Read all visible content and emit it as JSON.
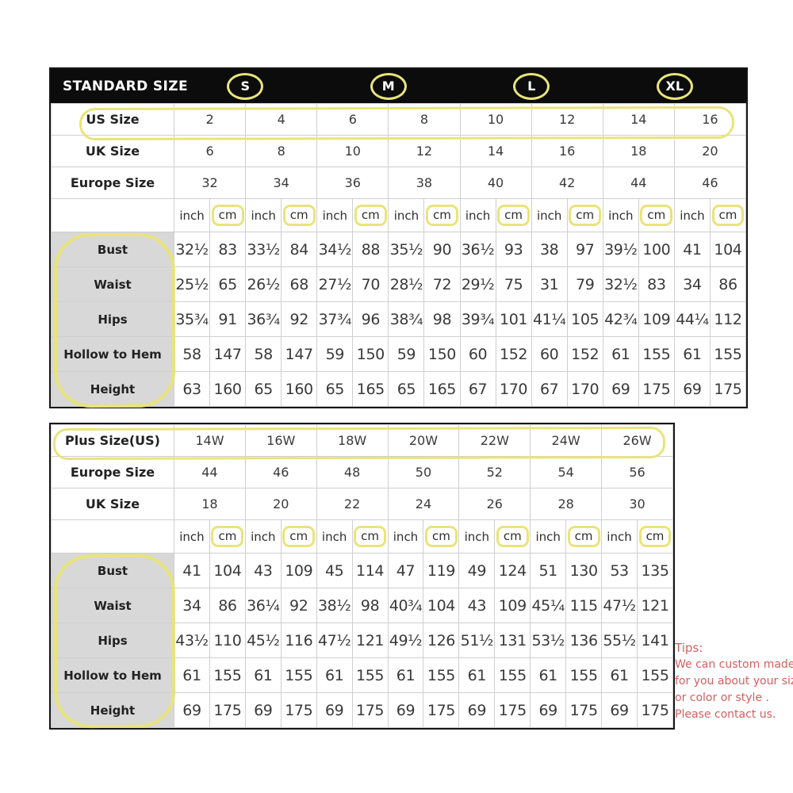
{
  "standard_table": {
    "title": "STANDARD SIZE",
    "size_groups": [
      "S",
      "M",
      "L",
      "XL"
    ],
    "size_rows": [
      {
        "label": "US Size",
        "values": [
          "2",
          "4",
          "6",
          "8",
          "10",
          "12",
          "14",
          "16"
        ]
      },
      {
        "label": "UK Size",
        "values": [
          "6",
          "8",
          "10",
          "12",
          "14",
          "16",
          "18",
          "20"
        ]
      },
      {
        "label": "Europe Size",
        "values": [
          "32",
          "34",
          "36",
          "38",
          "40",
          "42",
          "44",
          "46"
        ]
      }
    ],
    "unit_labels": {
      "inch": "inch",
      "cm": "cm"
    },
    "measure_rows": [
      {
        "label": "Bust",
        "values": [
          "32½",
          "83",
          "33½",
          "84",
          "34½",
          "88",
          "35½",
          "90",
          "36½",
          "93",
          "38",
          "97",
          "39½",
          "100",
          "41",
          "104"
        ]
      },
      {
        "label": "Waist",
        "values": [
          "25½",
          "65",
          "26½",
          "68",
          "27½",
          "70",
          "28½",
          "72",
          "29½",
          "75",
          "31",
          "79",
          "32½",
          "83",
          "34",
          "86"
        ]
      },
      {
        "label": "Hips",
        "values": [
          "35¾",
          "91",
          "36¾",
          "92",
          "37¾",
          "96",
          "38¾",
          "98",
          "39¾",
          "101",
          "41¼",
          "105",
          "42¾",
          "109",
          "44¼",
          "112"
        ]
      },
      {
        "label": "Hollow to Hem",
        "values": [
          "58",
          "147",
          "58",
          "147",
          "59",
          "150",
          "59",
          "150",
          "60",
          "152",
          "60",
          "152",
          "61",
          "155",
          "61",
          "155"
        ]
      },
      {
        "label": "Height",
        "values": [
          "63",
          "160",
          "65",
          "160",
          "65",
          "165",
          "65",
          "165",
          "67",
          "170",
          "67",
          "170",
          "69",
          "175",
          "69",
          "175"
        ]
      }
    ]
  },
  "plus_table": {
    "size_rows": [
      {
        "label": "Plus Size(US)",
        "values": [
          "14W",
          "16W",
          "18W",
          "20W",
          "22W",
          "24W",
          "26W"
        ]
      },
      {
        "label": "Europe Size",
        "values": [
          "44",
          "46",
          "48",
          "50",
          "52",
          "54",
          "56"
        ]
      },
      {
        "label": "UK Size",
        "values": [
          "18",
          "20",
          "22",
          "24",
          "26",
          "28",
          "30"
        ]
      }
    ],
    "unit_labels": {
      "inch": "inch",
      "cm": "cm"
    },
    "measure_rows": [
      {
        "label": "Bust",
        "values": [
          "41",
          "104",
          "43",
          "109",
          "45",
          "114",
          "47",
          "119",
          "49",
          "124",
          "51",
          "130",
          "53",
          "135"
        ]
      },
      {
        "label": "Waist",
        "values": [
          "34",
          "86",
          "36¼",
          "92",
          "38½",
          "98",
          "40¾",
          "104",
          "43",
          "109",
          "45¼",
          "115",
          "47½",
          "121"
        ]
      },
      {
        "label": "Hips",
        "values": [
          "43½",
          "110",
          "45½",
          "116",
          "47½",
          "121",
          "49½",
          "126",
          "51½",
          "131",
          "53½",
          "136",
          "55½",
          "141"
        ]
      },
      {
        "label": "Hollow to Hem",
        "values": [
          "61",
          "155",
          "61",
          "155",
          "61",
          "155",
          "61",
          "155",
          "61",
          "155",
          "61",
          "155",
          "61",
          "155"
        ]
      },
      {
        "label": "Height",
        "values": [
          "69",
          "175",
          "69",
          "175",
          "69",
          "175",
          "69",
          "175",
          "69",
          "175",
          "69",
          "175",
          "69",
          "175"
        ]
      }
    ]
  },
  "tips": {
    "title": "Tips:",
    "lines": [
      "We can custom made",
      "for you about your size",
      "or color or style .",
      "Please contact us."
    ]
  },
  "colors": {
    "highlight_yellow": "#e9e47a",
    "tips_red": "#d45f60",
    "header_black": "#0c0c0c",
    "label_gray": "#d8d8d8"
  }
}
